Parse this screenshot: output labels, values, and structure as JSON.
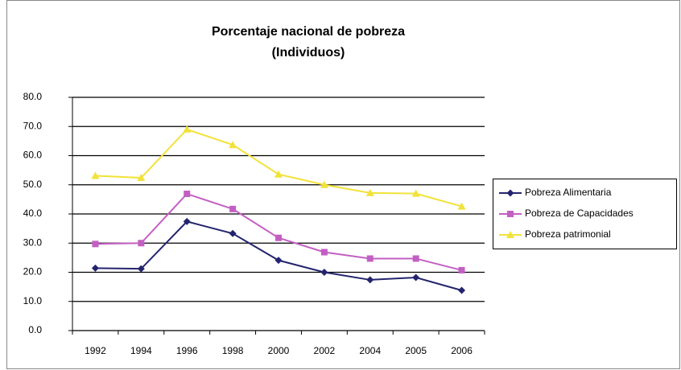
{
  "chart_data": {
    "type": "line",
    "title": "Porcentaje nacional de pobreza",
    "subtitle": "(Individuos)",
    "categories": [
      "1992",
      "1994",
      "1996",
      "1998",
      "2000",
      "2002",
      "2004",
      "2005",
      "2006"
    ],
    "series": [
      {
        "name": "Pobreza Alimentaria",
        "color": "#24246e",
        "marker": "diamond",
        "values": [
          21.4,
          21.2,
          37.4,
          33.3,
          24.1,
          20.0,
          17.4,
          18.2,
          13.8
        ]
      },
      {
        "name": "Pobreza de Capacidades",
        "color": "#c35fc3",
        "marker": "square",
        "values": [
          29.7,
          30.0,
          46.9,
          41.7,
          31.8,
          26.9,
          24.7,
          24.7,
          20.7
        ]
      },
      {
        "name": "Pobreza patrimonial",
        "color": "#f2e23a",
        "marker": "triangle",
        "values": [
          53.1,
          52.4,
          69.0,
          63.7,
          53.6,
          50.0,
          47.2,
          47.0,
          42.6
        ]
      }
    ],
    "ylim": [
      0,
      80
    ],
    "yticks": [
      {
        "value": 0,
        "label": "0.0"
      },
      {
        "value": 10,
        "label": "10.0"
      },
      {
        "value": 20,
        "label": "20.0"
      },
      {
        "value": 30,
        "label": "30.0"
      },
      {
        "value": 40,
        "label": "40.0"
      },
      {
        "value": 50,
        "label": "50.0"
      },
      {
        "value": 60,
        "label": "60.0"
      },
      {
        "value": 70,
        "label": "70.0"
      },
      {
        "value": 80,
        "label": "80.0"
      }
    ],
    "grid": true,
    "legend": "right"
  }
}
